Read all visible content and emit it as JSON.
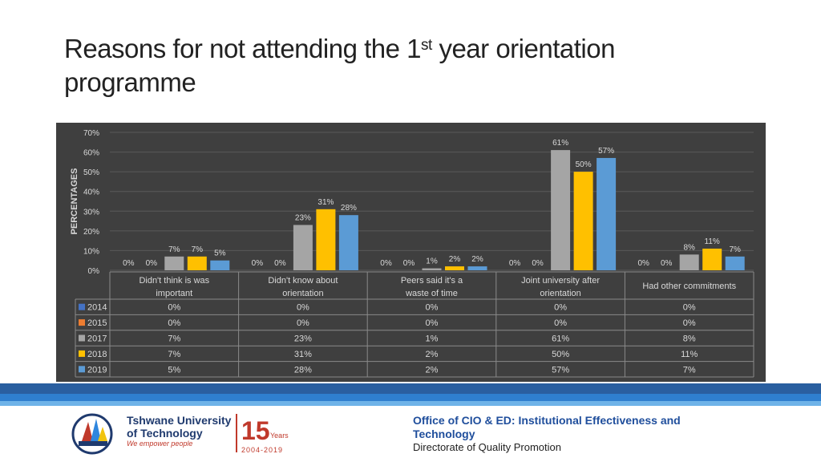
{
  "slide": {
    "title_part1": "Reasons for not attending the 1",
    "title_sup": "st",
    "title_part2": " year orientation programme"
  },
  "chart_data": {
    "type": "bar",
    "ylabel": "PERCENTAGES",
    "ylim": [
      0,
      70
    ],
    "yticks": [
      "0%",
      "10%",
      "20%",
      "30%",
      "40%",
      "50%",
      "60%",
      "70%"
    ],
    "categories": [
      "Didn't think is was important",
      "Didn't know about orientation",
      "Peers said it's a waste of time",
      "Joint university after orientation",
      "Had other commitments"
    ],
    "series": [
      {
        "name": "2014",
        "color": "#4472c4",
        "values": [
          0,
          0,
          0,
          0,
          0
        ],
        "labels": [
          "0%",
          "0%",
          "0%",
          "0%",
          "0%"
        ]
      },
      {
        "name": "2015",
        "color": "#ed7d31",
        "values": [
          0,
          0,
          0,
          0,
          0
        ],
        "labels": [
          "0%",
          "0%",
          "0%",
          "0%",
          "0%"
        ]
      },
      {
        "name": "2017",
        "color": "#a5a5a5",
        "values": [
          7,
          23,
          1,
          61,
          8
        ],
        "labels": [
          "7%",
          "23%",
          "1%",
          "61%",
          "8%"
        ]
      },
      {
        "name": "2018",
        "color": "#ffc000",
        "values": [
          7,
          31,
          2,
          50,
          11
        ],
        "labels": [
          "7%",
          "31%",
          "2%",
          "50%",
          "11%"
        ]
      },
      {
        "name": "2019",
        "color": "#5b9bd5",
        "values": [
          5,
          28,
          2,
          57,
          7
        ],
        "labels": [
          "5%",
          "28%",
          "2%",
          "57%",
          "7%"
        ]
      }
    ]
  },
  "footer": {
    "office": "Office of CIO & ED: Institutional  Effectiveness and Technology",
    "directorate": "Directorate of Quality Promotion",
    "university_line1": "Tshwane University",
    "university_line2": "of Technology",
    "slogan": "We empower people",
    "anniv_number": "15",
    "anniv_word": "Years",
    "anniv_range": "2004-2019"
  }
}
